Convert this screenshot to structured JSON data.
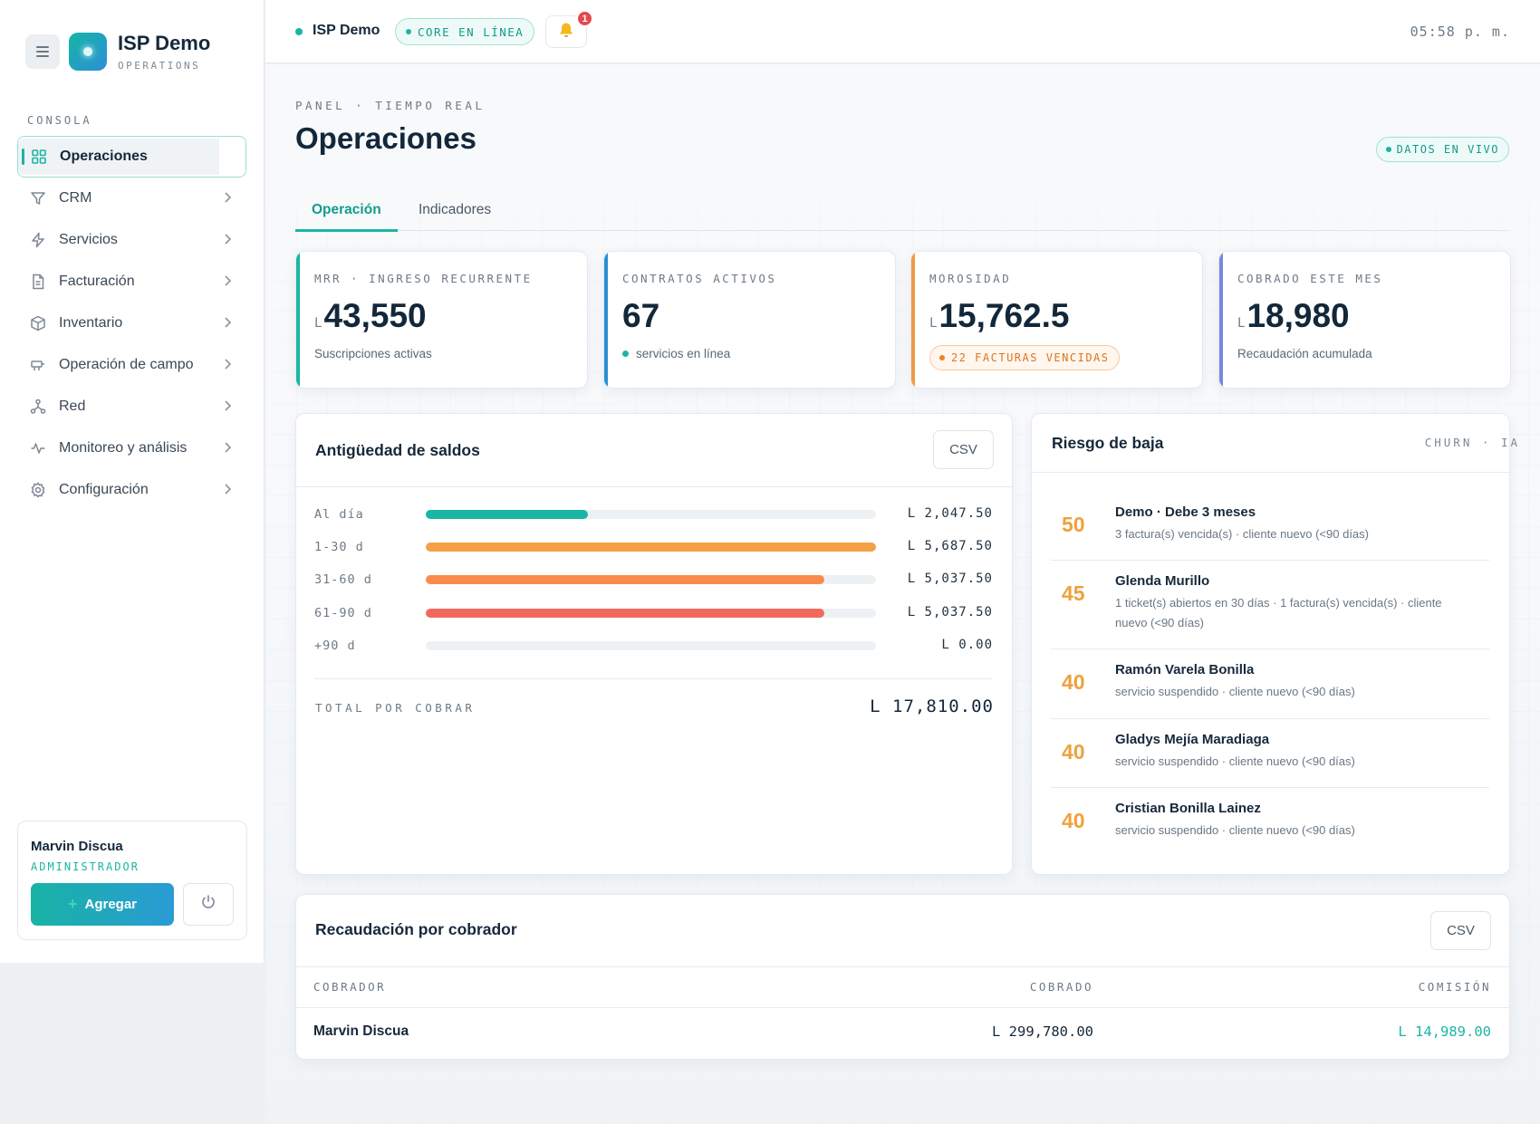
{
  "brand": {
    "name": "ISP Demo",
    "subtitle": "OPERATIONS"
  },
  "sidebar": {
    "section": "CONSOLA",
    "items": [
      {
        "label": "Operaciones",
        "icon": "grid-icon",
        "active": true
      },
      {
        "label": "CRM",
        "icon": "filter-icon"
      },
      {
        "label": "Servicios",
        "icon": "bolt-icon"
      },
      {
        "label": "Facturación",
        "icon": "document-icon"
      },
      {
        "label": "Inventario",
        "icon": "box-icon"
      },
      {
        "label": "Operación de campo",
        "icon": "tool-icon"
      },
      {
        "label": "Red",
        "icon": "network-icon"
      },
      {
        "label": "Monitoreo y análisis",
        "icon": "activity-icon"
      },
      {
        "label": "Configuración",
        "icon": "gear-icon"
      }
    ],
    "user": {
      "name": "Marvin Discua",
      "role": "ADMINISTRADOR",
      "add_label": "Agregar"
    }
  },
  "topbar": {
    "name": "ISP Demo",
    "status": "CORE EN LÍNEA",
    "notifications": "1",
    "time": "05:58 p. m."
  },
  "header": {
    "breadcrumb": "PANEL · TIEMPO REAL",
    "title": "Operaciones",
    "live": "DATOS EN VIVO",
    "tabs": [
      "Operación",
      "Indicadores"
    ]
  },
  "kpis": [
    {
      "label": "MRR · INGRESO RECURRENTE",
      "currency": "L",
      "value": "43,550",
      "sub": "Suscripciones activas",
      "color": "#1bb5a4"
    },
    {
      "label": "CONTRATOS ACTIVOS",
      "currency": "",
      "value": "67",
      "sub": "servicios en línea",
      "color": "#2b8fd6"
    },
    {
      "label": "MOROSIDAD",
      "currency": "L",
      "value": "15,762.5",
      "badge": "22 FACTURAS VENCIDAS",
      "color": "#ef9a45"
    },
    {
      "label": "COBRADO ESTE MES",
      "currency": "L",
      "value": "18,980",
      "sub": "Recaudación acumulada",
      "color": "#7b86e0"
    }
  ],
  "aging": {
    "title": "Antigüedad de saldos",
    "csv": "CSV",
    "rows": [
      {
        "label": "Al día",
        "amount": "L 2,047.50",
        "fill": 0.36,
        "color": "#1bb5a4"
      },
      {
        "label": "1-30 d",
        "amount": "L 5,687.50",
        "fill": 1.0,
        "color": "#f4a046"
      },
      {
        "label": "31-60 d",
        "amount": "L 5,037.50",
        "fill": 0.885,
        "color": "#fb8a4e"
      },
      {
        "label": "61-90 d",
        "amount": "L 5,037.50",
        "fill": 0.885,
        "color": "#f26a5e"
      },
      {
        "label": "+90 d",
        "amount": "L 0.00",
        "fill": 0,
        "color": "#f26a5e"
      }
    ],
    "total_label": "TOTAL POR COBRAR",
    "total_value": "L 17,810.00"
  },
  "risk": {
    "title": "Riesgo de baja",
    "subtitle": "CHURN · IA",
    "items": [
      {
        "score": "50",
        "name": "Demo · Debe 3 meses",
        "desc": "3 factura(s) vencida(s) · cliente nuevo (<90 días)"
      },
      {
        "score": "45",
        "name": "Glenda Murillo",
        "desc": "1 ticket(s) abiertos en 30 días · 1 factura(s) vencida(s) · cliente nuevo (<90 días)"
      },
      {
        "score": "40",
        "name": "Ramón Varela Bonilla",
        "desc": "servicio suspendido · cliente nuevo (<90 días)"
      },
      {
        "score": "40",
        "name": "Gladys Mejía Maradiaga",
        "desc": "servicio suspendido · cliente nuevo (<90 días)"
      },
      {
        "score": "40",
        "name": "Cristian Bonilla Lainez",
        "desc": "servicio suspendido · cliente nuevo (<90 días)"
      }
    ]
  },
  "collections": {
    "title": "Recaudación por cobrador",
    "csv": "CSV",
    "columns": [
      "COBRADOR",
      "COBRADO",
      "COMISIÓN"
    ],
    "rows": [
      {
        "collector": "Marvin Discua",
        "collected": "L 299,780.00",
        "commission": "L 14,989.00"
      }
    ]
  }
}
